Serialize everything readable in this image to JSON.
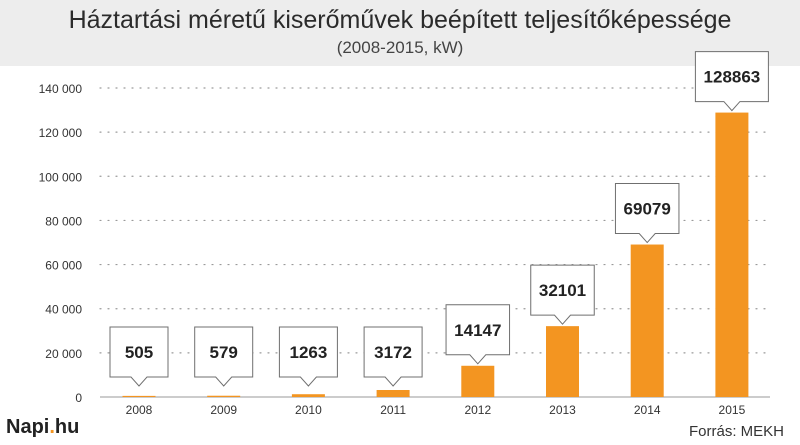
{
  "title": "Háztartási méretű kiserőművek beépített teljesítőképessége",
  "subtitle": "(2008-2015, kW)",
  "logo": {
    "name": "Napi",
    "dot": ".",
    "tld": "hu"
  },
  "source": "Forrás: MEKH",
  "colors": {
    "bar": "#f39521",
    "header_bg": "#ededed",
    "grid": "#9a9a9a"
  },
  "chart_data": {
    "type": "bar",
    "categories": [
      "2008",
      "2009",
      "2010",
      "2011",
      "2012",
      "2013",
      "2014",
      "2015"
    ],
    "values": [
      505,
      579,
      1263,
      3172,
      14147,
      32101,
      69079,
      128863
    ],
    "data_labels": [
      "505",
      "579",
      "1263",
      "3172",
      "14147",
      "32101",
      "69079",
      "128863"
    ],
    "ylim": [
      0,
      140000
    ],
    "yticks": [
      0,
      20000,
      40000,
      60000,
      80000,
      100000,
      120000,
      140000
    ],
    "ytick_labels": [
      "0",
      "20 000",
      "40 000",
      "60 000",
      "80 000",
      "100 000",
      "120 000",
      "140 000"
    ],
    "grid": true,
    "legend": "none"
  }
}
